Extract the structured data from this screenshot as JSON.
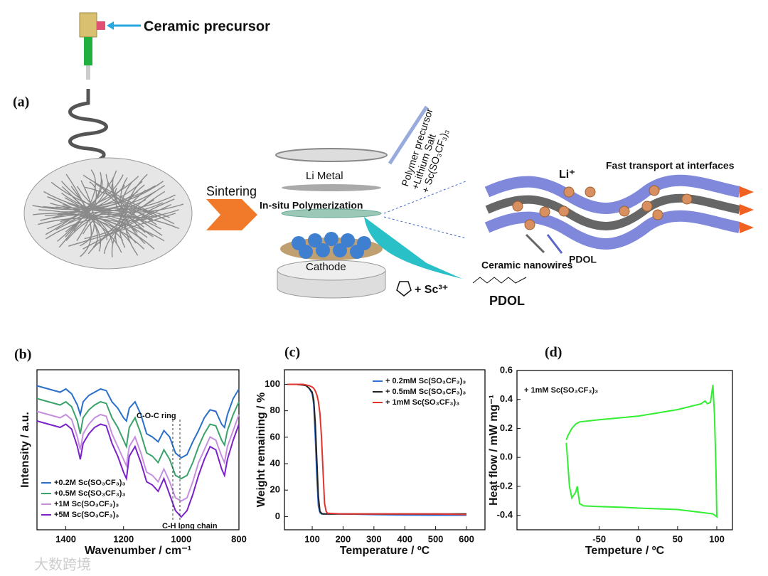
{
  "panel_a": {
    "label": "(a)",
    "ceramic_precursor": "Ceramic precursor",
    "sintering": "Sintering",
    "li_metal": "Li Metal",
    "polymerization": "In-situ Polymerization",
    "cathode": "Cathode",
    "precursor_lines": [
      "Polymer precursor",
      "+Lithium Salt",
      "+ Sc(SO₃CF₃)₃"
    ],
    "li_ion": "Li⁺",
    "fast_transport": "Fast transport at interfaces",
    "ceramic_nanowires": "Ceramic nanowires",
    "pdol_tube": "PDOL",
    "sc_ion": "+ Sc³⁺",
    "pdol": "PDOL"
  },
  "watermark": "大数跨境",
  "chart_data": [
    {
      "type": "line",
      "panel": "(b)",
      "xlabel": "Wavenumber / cm⁻¹",
      "ylabel": "Intensity / a.u.",
      "xlim": [
        1500,
        800
      ],
      "ylim": [
        0,
        100
      ],
      "xticks": [
        1400,
        1200,
        1000,
        800
      ],
      "legend": "lower left",
      "annotations": [
        "C-O-C ring",
        "C-H long chain"
      ],
      "x": [
        1500,
        1460,
        1420,
        1400,
        1380,
        1360,
        1350,
        1340,
        1320,
        1300,
        1280,
        1260,
        1240,
        1220,
        1200,
        1190,
        1180,
        1160,
        1140,
        1120,
        1100,
        1080,
        1060,
        1040,
        1020,
        1000,
        980,
        960,
        940,
        920,
        900,
        880,
        860,
        850,
        840,
        820,
        800
      ],
      "series": [
        {
          "name": "+0.2M Sc(SO₃CF₃)₃",
          "color": "#2a6fc9",
          "values": [
            90,
            88,
            86,
            88,
            85,
            78,
            72,
            80,
            84,
            86,
            88,
            87,
            80,
            76,
            70,
            68,
            76,
            80,
            72,
            60,
            58,
            55,
            62,
            58,
            48,
            45,
            47,
            55,
            62,
            70,
            75,
            74,
            66,
            64,
            72,
            82,
            88
          ]
        },
        {
          "name": "+0.5M Sc(SO₃CF₃)₃",
          "color": "#3aa26a",
          "values": [
            82,
            80,
            78,
            80,
            77,
            68,
            60,
            70,
            75,
            78,
            80,
            79,
            70,
            64,
            56,
            52,
            64,
            70,
            60,
            48,
            46,
            42,
            50,
            44,
            34,
            32,
            34,
            42,
            52,
            60,
            66,
            65,
            56,
            53,
            62,
            72,
            80
          ]
        },
        {
          "name": "+1M Sc(SO₃CF₃)₃",
          "color": "#c58fe0",
          "values": [
            74,
            72,
            70,
            72,
            69,
            58,
            50,
            60,
            66,
            70,
            72,
            71,
            60,
            52,
            44,
            40,
            52,
            58,
            48,
            36,
            34,
            30,
            38,
            30,
            20,
            18,
            20,
            30,
            42,
            50,
            58,
            56,
            46,
            42,
            52,
            62,
            72
          ]
        },
        {
          "name": "+5M Sc(SO₃CF₃)₃",
          "color": "#7a22c8",
          "values": [
            68,
            66,
            64,
            66,
            63,
            52,
            44,
            54,
            60,
            64,
            66,
            65,
            54,
            46,
            36,
            32,
            46,
            52,
            42,
            30,
            28,
            24,
            32,
            22,
            12,
            8,
            12,
            22,
            34,
            44,
            52,
            50,
            38,
            34,
            44,
            56,
            66
          ]
        }
      ]
    },
    {
      "type": "line",
      "panel": "(c)",
      "xlabel": "Temperature / ºC",
      "ylabel": "Weight remaining / %",
      "xlim": [
        10,
        660
      ],
      "ylim": [
        -10,
        111
      ],
      "xticks": [
        100,
        200,
        300,
        400,
        500,
        600
      ],
      "yticks": [
        0,
        20,
        40,
        60,
        80,
        100
      ],
      "legend": "upper right",
      "x": [
        20,
        50,
        70,
        80,
        90,
        100,
        105,
        110,
        115,
        120,
        125,
        130,
        135,
        140,
        145,
        150,
        200,
        300,
        400,
        500,
        600
      ],
      "series": [
        {
          "name": "+ 0.2mM Sc(SO₃CF₃)₃",
          "color": "#2f6fd6",
          "values": [
            100,
            100,
            99.5,
            99,
            97,
            93,
            85,
            60,
            30,
            8,
            3,
            2,
            2,
            2,
            2,
            2,
            2,
            1.5,
            1.2,
            1,
            1
          ]
        },
        {
          "name": "+ 0.5mM Sc(SO₃CF₃)₃",
          "color": "#222222",
          "values": [
            100,
            100,
            99.5,
            99,
            97,
            94,
            88,
            70,
            42,
            15,
            4,
            2.5,
            2,
            2,
            2,
            2,
            2,
            2,
            2,
            2,
            2
          ]
        },
        {
          "name": "+ 1mM Sc(SO₃CF₃)₃",
          "color": "#e0332e",
          "values": [
            100,
            100,
            100,
            99.5,
            99,
            98,
            97,
            95,
            92,
            87,
            78,
            60,
            35,
            10,
            4,
            2.5,
            2,
            2,
            2,
            2,
            1.5
          ]
        }
      ]
    },
    {
      "type": "line",
      "panel": "(d)",
      "xlabel": "Tempeture / ºC",
      "ylabel": "Heat flow / mW mg⁻¹",
      "xlim": [
        -155,
        120
      ],
      "ylim": [
        -0.5,
        0.6
      ],
      "xticks": [
        -50,
        0,
        50,
        100
      ],
      "yticks": [
        -0.4,
        -0.2,
        {
          "value": 0,
          "label": "0.0"
        },
        0.2,
        0.4,
        0.6
      ],
      "legend": "upper left",
      "series": [
        {
          "name": "+ 1mM Sc(SO₃CF₃)₃",
          "color": "#33ee33",
          "x": [
            -92,
            -90,
            -85,
            -80,
            -75,
            -50,
            0,
            50,
            80,
            85,
            88,
            92,
            95,
            97,
            99,
            100,
            95,
            50,
            0,
            -20,
            -50,
            -70,
            -75,
            -78,
            -80,
            -85,
            -88,
            -92
          ],
          "values": [
            0.12,
            0.15,
            0.2,
            0.23,
            0.245,
            0.26,
            0.285,
            0.33,
            0.37,
            0.39,
            0.37,
            0.38,
            0.5,
            0.3,
            -0.1,
            -0.41,
            -0.39,
            -0.36,
            -0.35,
            -0.345,
            -0.34,
            -0.335,
            -0.32,
            -0.2,
            -0.24,
            -0.28,
            -0.2,
            0.1
          ]
        }
      ]
    }
  ]
}
